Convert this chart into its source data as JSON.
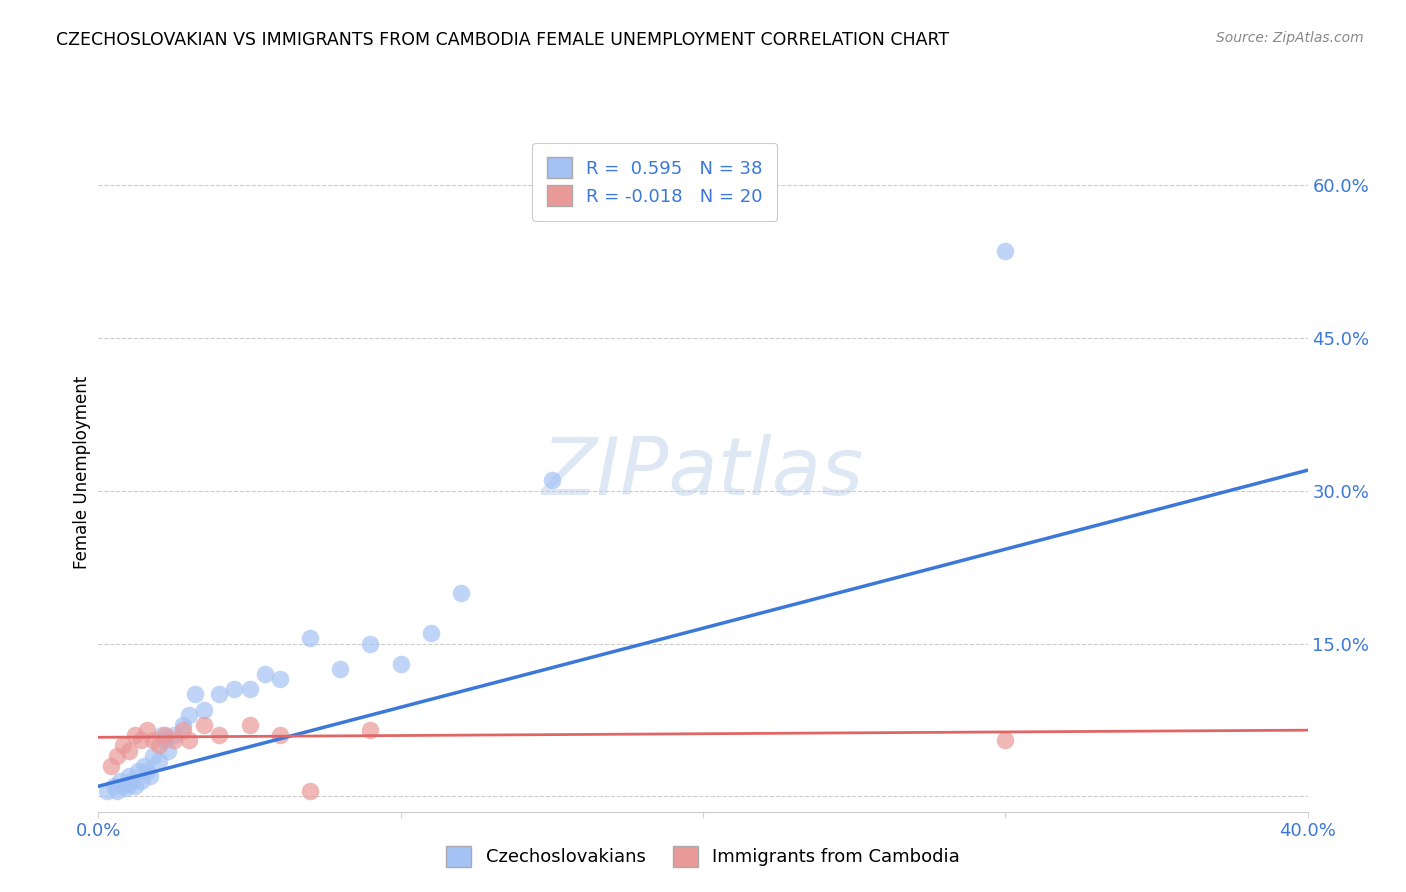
{
  "title": "CZECHOSLOVAKIAN VS IMMIGRANTS FROM CAMBODIA FEMALE UNEMPLOYMENT CORRELATION CHART",
  "source": "Source: ZipAtlas.com",
  "ylabel": "Female Unemployment",
  "ytick_values": [
    0.0,
    0.15,
    0.3,
    0.45,
    0.6
  ],
  "ytick_labels": [
    "",
    "15.0%",
    "30.0%",
    "45.0%",
    "60.0%"
  ],
  "xmin": 0.0,
  "xmax": 0.4,
  "ymin": -0.015,
  "ymax": 0.65,
  "blue_R": 0.595,
  "blue_N": 38,
  "pink_R": -0.018,
  "pink_N": 20,
  "blue_color": "#a4c2f4",
  "pink_color": "#ea9999",
  "blue_line_color": "#3c78d8",
  "pink_line_color": "#e06666",
  "watermark_text": "ZIPatlas",
  "legend_label1": "Czechoslovakians",
  "legend_label2": "Immigrants from Cambodia",
  "blue_scatter_x": [
    0.003,
    0.005,
    0.006,
    0.007,
    0.008,
    0.009,
    0.01,
    0.01,
    0.011,
    0.012,
    0.013,
    0.014,
    0.015,
    0.016,
    0.017,
    0.018,
    0.02,
    0.021,
    0.022,
    0.023,
    0.025,
    0.028,
    0.03,
    0.032,
    0.035,
    0.04,
    0.045,
    0.05,
    0.055,
    0.06,
    0.07,
    0.08,
    0.09,
    0.1,
    0.11,
    0.12,
    0.15,
    0.3
  ],
  "blue_scatter_y": [
    0.005,
    0.01,
    0.005,
    0.015,
    0.01,
    0.008,
    0.012,
    0.02,
    0.015,
    0.01,
    0.025,
    0.015,
    0.03,
    0.025,
    0.02,
    0.04,
    0.035,
    0.06,
    0.055,
    0.045,
    0.06,
    0.07,
    0.08,
    0.1,
    0.085,
    0.1,
    0.105,
    0.105,
    0.12,
    0.115,
    0.155,
    0.125,
    0.15,
    0.13,
    0.16,
    0.2,
    0.31,
    0.535
  ],
  "pink_scatter_x": [
    0.004,
    0.006,
    0.008,
    0.01,
    0.012,
    0.014,
    0.016,
    0.018,
    0.02,
    0.022,
    0.025,
    0.028,
    0.03,
    0.035,
    0.04,
    0.05,
    0.06,
    0.07,
    0.09,
    0.3
  ],
  "pink_scatter_y": [
    0.03,
    0.04,
    0.05,
    0.045,
    0.06,
    0.055,
    0.065,
    0.055,
    0.05,
    0.06,
    0.055,
    0.065,
    0.055,
    0.07,
    0.06,
    0.07,
    0.06,
    0.005,
    0.065,
    0.055
  ]
}
